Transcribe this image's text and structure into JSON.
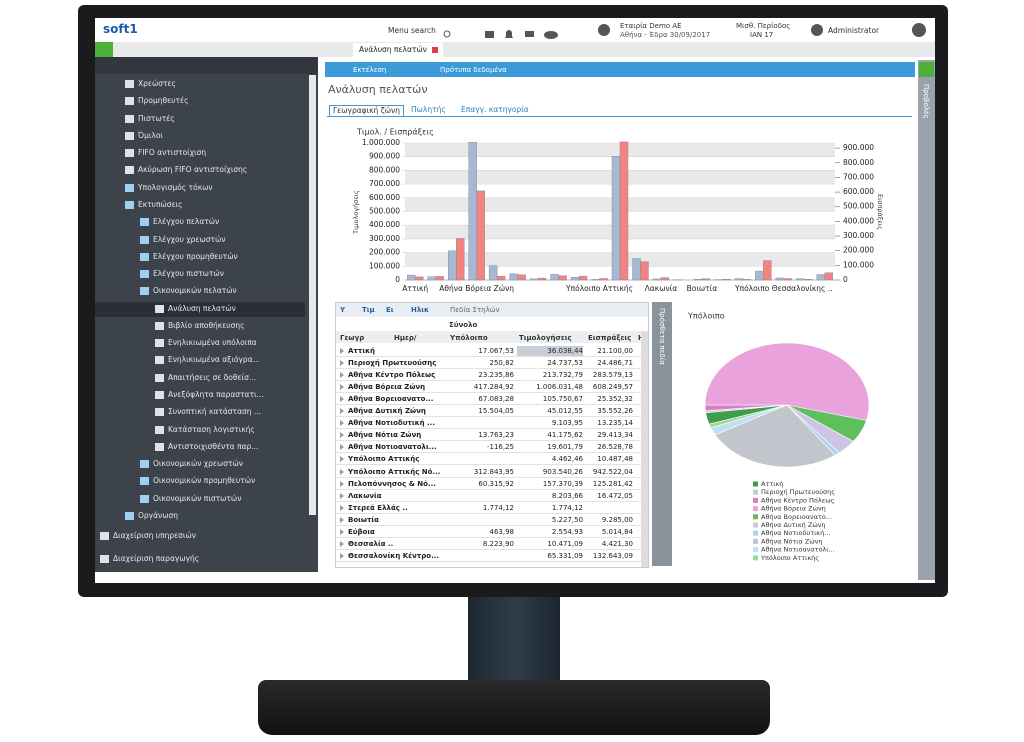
{
  "header": {
    "logo": "soft1",
    "menu_search": "Menu search",
    "company": "Εταιρία Demo ΑΕ",
    "branch_date": "Αθήνα - Έδρα 30/09/2017",
    "period_label": "Μισθ. Περίοδος",
    "period": "ΙΑΝ 17",
    "user": "Administrator"
  },
  "sidebar": {
    "items": [
      "Χρεώστες",
      "Προμηθευτές",
      "Πιστωτές",
      "Όμιλοι",
      "FIFO αντιστοίχιση",
      "Ακύρωση FIFO αντιστοίχισης",
      "Υπολογισμός τόκων",
      "Εκτυπώσεις",
      "Ελέγχου πελατών",
      "Ελέγχου χρεωστών",
      "Ελέγχου προμηθευτών",
      "Ελέγχου πιστωτών",
      "Οικονομικών πελατών",
      "Ανάλυση πελατών",
      "Βιβλίο αποθήκευσης",
      "Ενηλικιωμένα υπόλοιπα",
      "Ενηλικιωμένα αξιόγρα...",
      "Απαιτήσεις σε δοθείσ...",
      "Ανεξόφλητα παραστατι...",
      "Συνοπτική κατάσταση ...",
      "Κατάσταση λογιστικής",
      "Αντιστοιχισθέντα παρ...",
      "Οικονομικών χρεωστών",
      "Οικονομικών προμηθευτών",
      "Οικονομικών πιστωτών",
      "Οργάνωση",
      "Διαχείριση υπηρεσιών",
      "Διαχείριση παραγωγής"
    ]
  },
  "tab": "Ανάλυση πελατών",
  "toolbar": {
    "run": "Εκτέλεση",
    "templates": "Πρότυπα δεδομένα"
  },
  "page_title": "Ανάλυση πελατών",
  "subtabs": [
    "Γεωγραφική ζώνη",
    "Πωλητής",
    "Επαγγ. κατηγορία"
  ],
  "side_panel": "Προβολές",
  "extra_fields": "Πρόσθετα πεδία",
  "pivot": {
    "filters": [
      "Υ",
      "Τιμ",
      "Ει",
      "Ηλικ"
    ],
    "column_fields": "Πεδία Στηλών",
    "total": "Σύνολο",
    "row_fields": [
      "Γεωγρ",
      "Ημερ/"
    ],
    "columns": [
      "Υπόλοιπο",
      "Τιμολογήσεις",
      "Εισπράξεις",
      "Η"
    ],
    "rows": [
      [
        "Αττική",
        "17.067,53",
        "36.038,44",
        "21.100,00"
      ],
      [
        "Περιοχή Πρωτευούσης",
        "250,82",
        "24.737,53",
        "24.486,71"
      ],
      [
        "Αθήνα Κέντρο Πόλεως",
        "23.235,86",
        "213.732,79",
        "283.579,13"
      ],
      [
        "Αθήνα Βόρεια Ζώνη",
        "417.284,92",
        "1.006.031,48",
        "608.249,57"
      ],
      [
        "Αθήνα Βορειοανατο...",
        "67.083,28",
        "105.750,67",
        "25.352,32"
      ],
      [
        "Αθήνα Δυτική Ζώνη",
        "15.504,05",
        "45.012,55",
        "35.552,26"
      ],
      [
        "Αθήνα Νοτιοδυτική ...",
        null,
        "9.103,95",
        "13.235,14"
      ],
      [
        "Αθήνα Νότια Ζώνη",
        "13.763,23",
        "41.175,62",
        "29.413,34"
      ],
      [
        "Αθήνα Νοτιοανατολι...",
        "-116,25",
        "19.601,79",
        "26.528,78"
      ],
      [
        "Υπόλοιπο Αττικής",
        null,
        "4.462,46",
        "10.487,48"
      ],
      [
        "Υπόλοιπο Αττικής Νό...",
        "312.843,95",
        "903.540,26",
        "942.522,04"
      ],
      [
        "Πελοπόννησος & Νό...",
        "60.315,92",
        "157.370,39",
        "125.281,42"
      ],
      [
        "Λακωνία",
        null,
        "8.203,66",
        "16.472,05"
      ],
      [
        "Στερεά Ελλάς ..",
        "1.774,12",
        "1.774,12",
        null
      ],
      [
        "Βοιωτία",
        null,
        "5.227,50",
        "9.285,00"
      ],
      [
        "Εύβοια",
        "463,98",
        "2.554,93",
        "5.014,84"
      ],
      [
        "Θεσσαλία ..",
        "8.223,90",
        "10.471,09",
        "4.421,30"
      ],
      [
        "Θεσσαλονίκη Κέντρο...",
        null,
        "65.331,09",
        "132.643,09"
      ]
    ]
  },
  "chart_data": [
    {
      "type": "bar",
      "title": "Τιμολ. / Εισπράξεις",
      "y_label": "Τιμολογήσεις",
      "y2_label": "Εισπράξεις",
      "categories": [
        "Αττική",
        null,
        null,
        "Αθήνα Βόρεια Ζώνη",
        null,
        null,
        null,
        null,
        null,
        "Υπόλοιπο Αττικής",
        null,
        null,
        "Λακωνία",
        null,
        "Βοιωτία",
        null,
        null,
        null,
        "Υπόλοιπο Θεσσαλονίκης ..",
        null,
        null
      ],
      "series": [
        {
          "color": "#a8b8d2",
          "values": [
            36038,
            24738,
            213733,
            1006031,
            105751,
            45013,
            9104,
            41176,
            19602,
            4462,
            903540,
            157370,
            8204,
            1774,
            5228,
            2555,
            10471,
            65331,
            15000,
            10000,
            40000
          ]
        },
        {
          "color": "#f2837e",
          "axis": "y2",
          "values": [
            21100,
            24487,
            283579,
            608250,
            25352,
            35552,
            13235,
            29413,
            26529,
            10487,
            942522,
            125281,
            16472,
            null,
            9285,
            5015,
            4421,
            132643,
            10000,
            5000,
            50000
          ]
        }
      ],
      "ylim": [
        0,
        1000000
      ],
      "yticks": [
        0,
        {
          "value": 100000,
          "label": "100.000"
        },
        {
          "value": 200000,
          "label": "200.000"
        },
        {
          "value": 300000,
          "label": "300.000"
        },
        {
          "value": 400000,
          "label": "400.000"
        },
        {
          "value": 500000,
          "label": "500.000"
        },
        {
          "value": 600000,
          "label": "600.000"
        },
        {
          "value": 700000,
          "label": "700.000"
        },
        {
          "value": 800000,
          "label": "800.000"
        },
        {
          "value": 900000,
          "label": "900.000"
        },
        {
          "value": 1000000,
          "label": "1.000.000"
        }
      ],
      "y2lim": [
        0,
        935000
      ],
      "y2ticks": [
        0,
        {
          "value": 100000,
          "label": "100.000"
        },
        {
          "value": 200000,
          "label": "200.000"
        },
        {
          "value": 300000,
          "label": "300.000"
        },
        {
          "value": 400000,
          "label": "400.000"
        },
        {
          "value": 500000,
          "label": "500.000"
        },
        {
          "value": 600000,
          "label": "600.000"
        },
        {
          "value": 700000,
          "label": "700.000"
        },
        {
          "value": 800000,
          "label": "800.000"
        },
        {
          "value": 900000,
          "label": "900.000"
        }
      ],
      "grid": true
    },
    {
      "type": "pie",
      "title": "Υπόλοιπο",
      "categories": [
        "Αττική",
        "Περιοχή Πρωτευούσης",
        "Αθήνα Κέντρο Πόλεως",
        "Αθήνα Βόρεια Ζώνη",
        "Αθήνα Βορειοανατο...",
        "Αθήνα Δυτική Ζώνη",
        "Αθήνα Νοτιοδυτική...",
        "Αθήνα Νότια Ζώνη",
        "Αθήνα Νοτιοανατολι...",
        "Υπόλοιπο Αττικής"
      ],
      "values": [
        3,
        0.5,
        1.5,
        54,
        6,
        4,
        1,
        27,
        2,
        1
      ],
      "colors": [
        "#3f9d4f",
        "#c9c9c9",
        "#d97ec8",
        "#eaa2dd",
        "#5fbf5f",
        "#cfc3e6",
        "#a9d3ee",
        "#c2c6cc",
        "#bfe2f3",
        "#9fd99a"
      ]
    }
  ]
}
